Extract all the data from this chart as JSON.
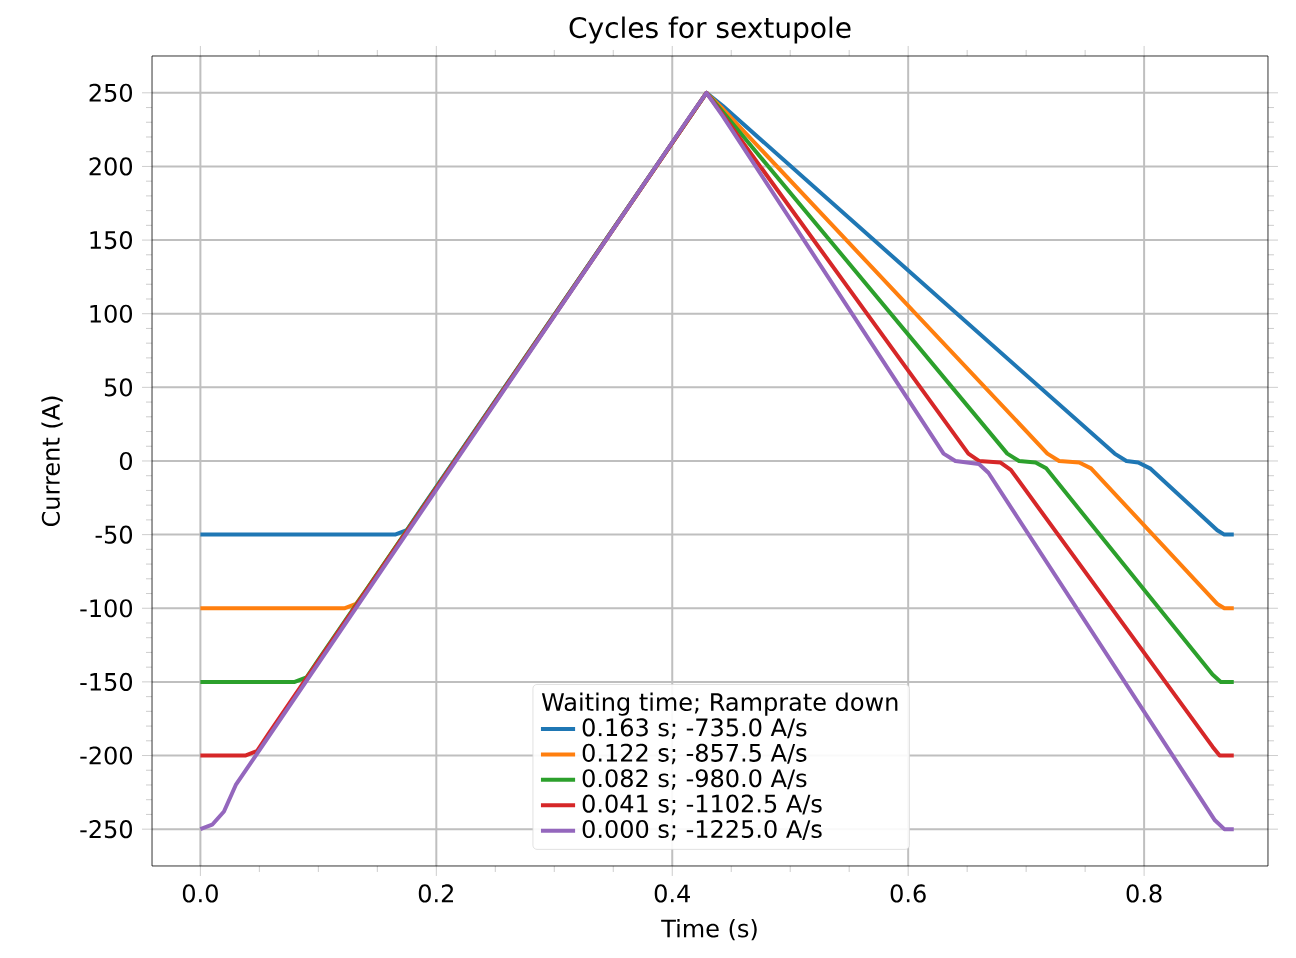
{
  "chart_data": {
    "type": "line",
    "title": "Cycles for sextupole",
    "xlabel": "Time (s)",
    "ylabel": "Current (A)",
    "legend_title": "Waiting time; Ramprate down",
    "xlim": [
      -0.041,
      0.905
    ],
    "ylim": [
      -275,
      275
    ],
    "xticks": [
      {
        "value": 0,
        "label": "0.0"
      },
      {
        "value": 0.2,
        "label": "0.2"
      },
      {
        "value": 0.4,
        "label": "0.4"
      },
      {
        "value": 0.6,
        "label": "0.6"
      },
      {
        "value": 0.8,
        "label": "0.8"
      }
    ],
    "yticks": [
      -250,
      -200,
      -150,
      -100,
      -50,
      0,
      50,
      100,
      150,
      200,
      250
    ],
    "grid": true,
    "legend": "bottom",
    "marker": "none",
    "line_style": "solid",
    "series": [
      {
        "name": "0.163 s;   -735.0 A/s",
        "color": "#1f77b4",
        "x": [
          0,
          0.165,
          0.175,
          0.185,
          0.429,
          0.443,
          0.775,
          0.785,
          0.795,
          0.805,
          0.862,
          0.868,
          0.876
        ],
        "values": [
          -50,
          -50,
          -47,
          -35,
          250,
          241,
          5,
          0,
          -1,
          -5,
          -47,
          -50,
          -50
        ]
      },
      {
        "name": "0.122 s;   -857.5 A/s",
        "color": "#ff7f0e",
        "x": [
          0,
          0.122,
          0.132,
          0.142,
          0.429,
          0.443,
          0.718,
          0.728,
          0.745,
          0.755,
          0.862,
          0.868,
          0.876
        ],
        "values": [
          -100,
          -100,
          -97,
          -86,
          250,
          239,
          5,
          0,
          -1,
          -5,
          -97,
          -100,
          -100
        ]
      },
      {
        "name": "0.082 s;   -980.0 A/s",
        "color": "#2ca02c",
        "x": [
          0,
          0.08,
          0.09,
          0.1,
          0.429,
          0.443,
          0.684,
          0.694,
          0.708,
          0.717,
          0.858,
          0.865,
          0.876
        ],
        "values": [
          -150,
          -150,
          -147,
          -135,
          250,
          237,
          5,
          0,
          -1,
          -5,
          -145,
          -150,
          -150
        ]
      },
      {
        "name": "0.041 s;  -1102.5 A/s",
        "color": "#d62728",
        "x": [
          0,
          0.038,
          0.048,
          0.058,
          0.429,
          0.443,
          0.651,
          0.66,
          0.678,
          0.687,
          0.858,
          0.864,
          0.876
        ],
        "values": [
          -200,
          -200,
          -197,
          -185,
          250,
          235,
          5,
          0,
          -1,
          -6,
          -194,
          -200,
          -200
        ]
      },
      {
        "name": "0.000 s;  -1225.0 A/s",
        "color": "#9467bd",
        "x": [
          0,
          0.01,
          0.02,
          0.03,
          0.415,
          0.429,
          0.443,
          0.63,
          0.64,
          0.66,
          0.668,
          0.86,
          0.868,
          0.876
        ],
        "values": [
          -250,
          -247,
          -238,
          -220,
          234,
          250,
          234,
          5,
          0,
          -2,
          -8,
          -244,
          -250,
          -250
        ]
      }
    ]
  }
}
